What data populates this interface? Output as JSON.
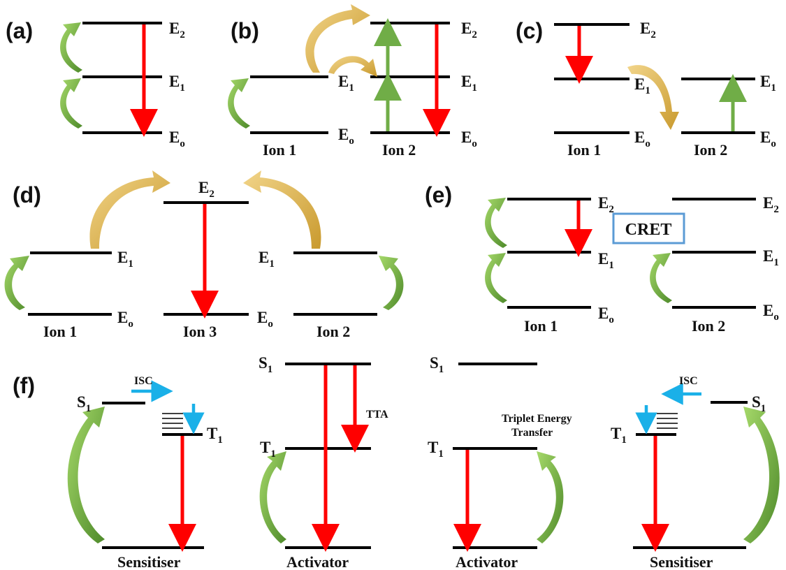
{
  "panels": {
    "a": {
      "label": "(a)",
      "levels": [
        "E2",
        "E1",
        "Eo"
      ]
    },
    "b": {
      "label": "(b)",
      "ions": [
        "Ion 1",
        "Ion 2"
      ]
    },
    "c": {
      "label": "(c)",
      "ions": [
        "Ion 1",
        "Ion 2"
      ]
    },
    "d": {
      "label": "(d)",
      "ions": [
        "Ion 1",
        "Ion 3",
        "Ion 2"
      ]
    },
    "e": {
      "label": "(e)",
      "ions": [
        "Ion 1",
        "Ion 2"
      ],
      "box": "CRET"
    },
    "f": {
      "label": "(f)",
      "isc": "ISC",
      "tta": "TTA",
      "transfer_line1": "Triplet Energy",
      "transfer_line2": "Transfer",
      "species": [
        "Sensitiser",
        "Activator",
        "Activator",
        "Sensitiser"
      ]
    }
  },
  "level_names": {
    "E2": "E",
    "E1": "E",
    "Eo": "E",
    "S1": "S",
    "T1": "T"
  },
  "level_subs": {
    "E2": "2",
    "E1": "1",
    "Eo": "o",
    "S1": "1",
    "T1": "1"
  },
  "colors": {
    "emission": "#ff0000",
    "absorption": "#70ad47",
    "transfer": "#e6b84a",
    "isc": "#1ab0e8",
    "cret_box": "#5b9bd5"
  }
}
